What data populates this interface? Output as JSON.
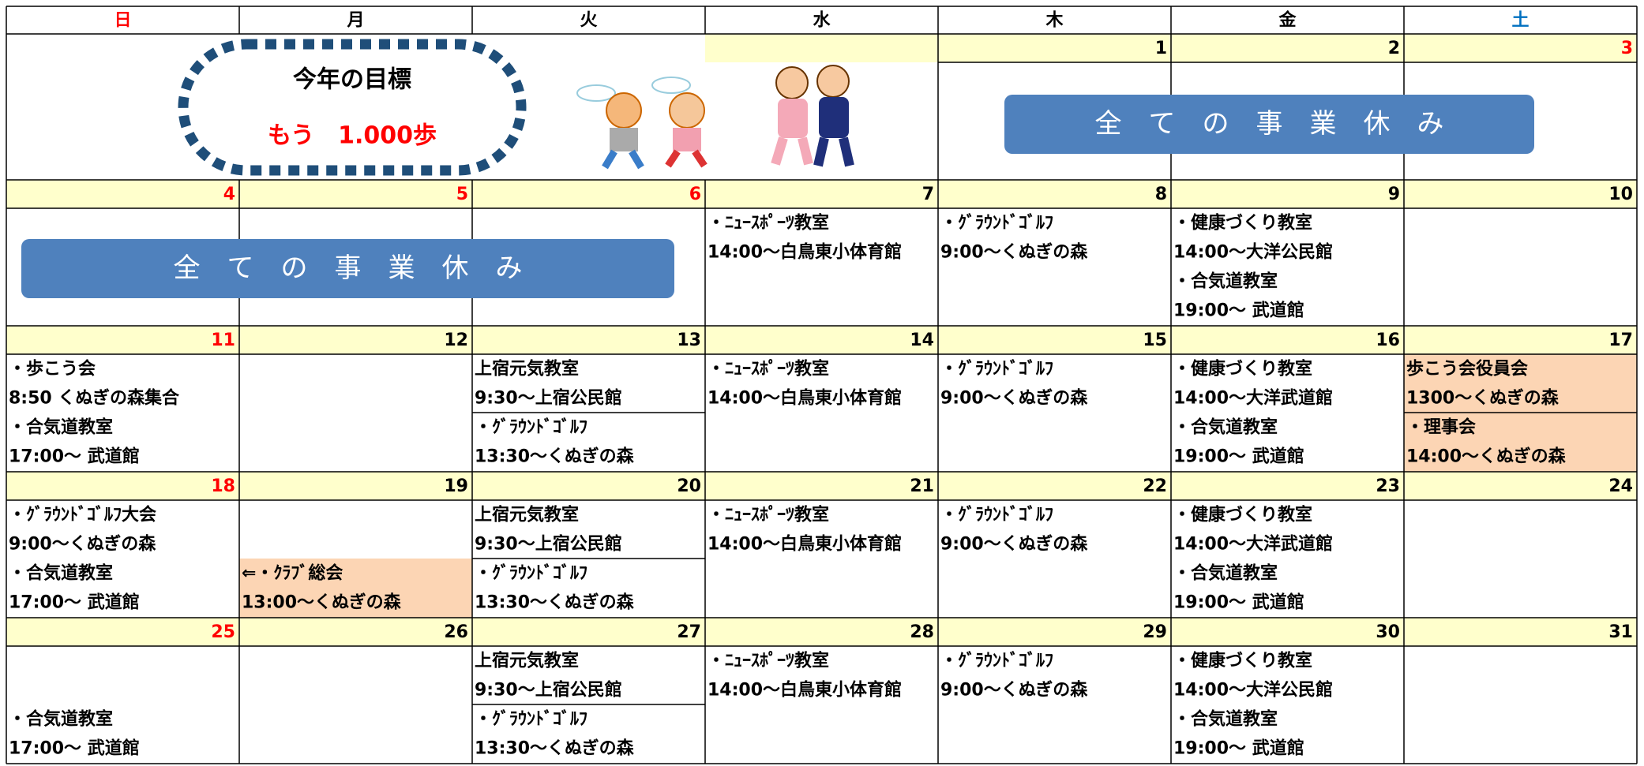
{
  "header": {
    "weekdays": [
      "日",
      "月",
      "火",
      "水",
      "木",
      "金",
      "土"
    ],
    "weekday_colors": [
      "#ff0000",
      "#000000",
      "#000000",
      "#000000",
      "#000000",
      "#000000",
      "#0070c0"
    ]
  },
  "goal": {
    "title": "今年の目標",
    "target": "もう　1.000歩"
  },
  "banners": [
    "全ての事業休み",
    "全ての事業休み"
  ],
  "weeks": [
    {
      "dates": [
        null,
        null,
        null,
        null,
        1,
        2,
        3
      ],
      "date_colors": [
        "#000000",
        "#000000",
        "#000000",
        "#000000",
        "#000000",
        "#000000",
        "#ff0000"
      ],
      "cells": [
        {
          "entries": []
        },
        {
          "entries": []
        },
        {
          "entries": []
        },
        {
          "entries": []
        },
        {
          "entries": []
        },
        {
          "entries": []
        },
        {
          "entries": []
        }
      ]
    },
    {
      "dates": [
        4,
        5,
        6,
        7,
        8,
        9,
        10
      ],
      "date_colors": [
        "#ff0000",
        "#ff0000",
        "#ff0000",
        "#000000",
        "#000000",
        "#000000",
        "#000000"
      ],
      "cells": [
        {
          "entries": []
        },
        {
          "entries": []
        },
        {
          "entries": []
        },
        {
          "entries": [
            {
              "lines": [
                "・ﾆｭｰｽﾎﾟｰﾂ教室",
                "14:00～白鳥東小体育館"
              ]
            }
          ]
        },
        {
          "entries": [
            {
              "lines": [
                "・ｸﾞﾗｳﾝﾄﾞｺﾞﾙﾌ",
                "9:00～くぬぎの森"
              ]
            }
          ]
        },
        {
          "entries": [
            {
              "lines": [
                "・健康づくり教室",
                "14:00～大洋公民館"
              ]
            },
            {
              "lines": [
                "・合気道教室",
                "19:00～ 武道館"
              ]
            }
          ]
        },
        {
          "entries": []
        }
      ]
    },
    {
      "dates": [
        11,
        12,
        13,
        14,
        15,
        16,
        17
      ],
      "date_colors": [
        "#ff0000",
        "#000000",
        "#000000",
        "#000000",
        "#000000",
        "#000000",
        "#000000"
      ],
      "cells": [
        {
          "entries": [
            {
              "lines": [
                "・歩こう会",
                "8:50  くぬぎの森集合"
              ]
            },
            {
              "lines": [
                "・合気道教室",
                "17:00～ 武道館"
              ]
            }
          ]
        },
        {
          "entries": []
        },
        {
          "ruled": true,
          "entries": [
            {
              "lines": [
                "上宿元気教室",
                "9:30～上宿公民館"
              ]
            },
            {
              "lines": [
                "・ｸﾞﾗｳﾝﾄﾞｺﾞﾙﾌ",
                "13:30～くぬぎの森"
              ]
            }
          ]
        },
        {
          "entries": [
            {
              "lines": [
                "・ﾆｭｰｽﾎﾟｰﾂ教室",
                "14:00～白鳥東小体育館"
              ]
            }
          ]
        },
        {
          "entries": [
            {
              "lines": [
                "・ｸﾞﾗｳﾝﾄﾞｺﾞﾙﾌ",
                "9:00～くぬぎの森"
              ]
            }
          ]
        },
        {
          "entries": [
            {
              "lines": [
                "・健康づくり教室",
                "14:00～大洋武道館"
              ]
            },
            {
              "lines": [
                "・合気道教室",
                "19:00～ 武道館"
              ]
            }
          ]
        },
        {
          "ruled": true,
          "entries": [
            {
              "lines": [
                "歩こう会役員会",
                "1300～くぬぎの森"
              ],
              "fill": "#fcd5b4"
            },
            {
              "lines": [
                "・理事会",
                "14:00～くぬぎの森"
              ],
              "fill": "#fcd5b4"
            }
          ]
        }
      ]
    },
    {
      "dates": [
        18,
        19,
        20,
        21,
        22,
        23,
        24
      ],
      "date_colors": [
        "#ff0000",
        "#000000",
        "#000000",
        "#000000",
        "#000000",
        "#000000",
        "#000000"
      ],
      "cells": [
        {
          "entries": [
            {
              "lines": [
                "・ｸﾞﾗｳﾝﾄﾞｺﾞﾙﾌ大会",
                "9:00～くぬぎの森"
              ]
            },
            {
              "lines": [
                "・合気道教室",
                "17:00～ 武道館"
              ]
            }
          ]
        },
        {
          "entries": [
            null,
            {
              "lines": [
                "⇐・ｸﾗﾌﾞ総会",
                "13:00～くぬぎの森"
              ],
              "fill": "#fcd5b4"
            }
          ]
        },
        {
          "ruled": true,
          "entries": [
            {
              "lines": [
                "上宿元気教室",
                "9:30～上宿公民館"
              ]
            },
            {
              "lines": [
                "・ｸﾞﾗｳﾝﾄﾞｺﾞﾙﾌ",
                "13:30～くぬぎの森"
              ]
            }
          ]
        },
        {
          "entries": [
            {
              "lines": [
                "・ﾆｭｰｽﾎﾟｰﾂ教室",
                "14:00～白鳥東小体育館"
              ]
            }
          ]
        },
        {
          "entries": [
            {
              "lines": [
                "・ｸﾞﾗｳﾝﾄﾞｺﾞﾙﾌ",
                "9:00～くぬぎの森"
              ]
            }
          ]
        },
        {
          "entries": [
            {
              "lines": [
                "・健康づくり教室",
                "14:00～大洋武道館"
              ]
            },
            {
              "lines": [
                "・合気道教室",
                "19:00～ 武道館"
              ]
            }
          ]
        },
        {
          "entries": []
        }
      ]
    },
    {
      "dates": [
        25,
        26,
        27,
        28,
        29,
        30,
        31
      ],
      "date_colors": [
        "#ff0000",
        "#000000",
        "#000000",
        "#000000",
        "#000000",
        "#000000",
        "#000000"
      ],
      "cells": [
        {
          "entries": [
            null,
            {
              "lines": [
                "・合気道教室",
                "17:00～ 武道館"
              ]
            }
          ]
        },
        {
          "entries": []
        },
        {
          "ruled": true,
          "entries": [
            {
              "lines": [
                "上宿元気教室",
                "9:30～上宿公民館"
              ]
            },
            {
              "lines": [
                "・ｸﾞﾗｳﾝﾄﾞｺﾞﾙﾌ",
                "13:30～くぬぎの森"
              ]
            }
          ]
        },
        {
          "entries": [
            {
              "lines": [
                "・ﾆｭｰｽﾎﾟｰﾂ教室",
                "14:00～白鳥東小体育館"
              ]
            }
          ]
        },
        {
          "entries": [
            {
              "lines": [
                "・ｸﾞﾗｳﾝﾄﾞｺﾞﾙﾌ",
                "9:00～くぬぎの森"
              ]
            }
          ]
        },
        {
          "entries": [
            {
              "lines": [
                "・健康づくり教室",
                "14:00～大洋公民館"
              ]
            },
            {
              "lines": [
                "・合気道教室",
                "19:00～ 武道館"
              ]
            }
          ]
        },
        {
          "entries": []
        }
      ]
    }
  ]
}
